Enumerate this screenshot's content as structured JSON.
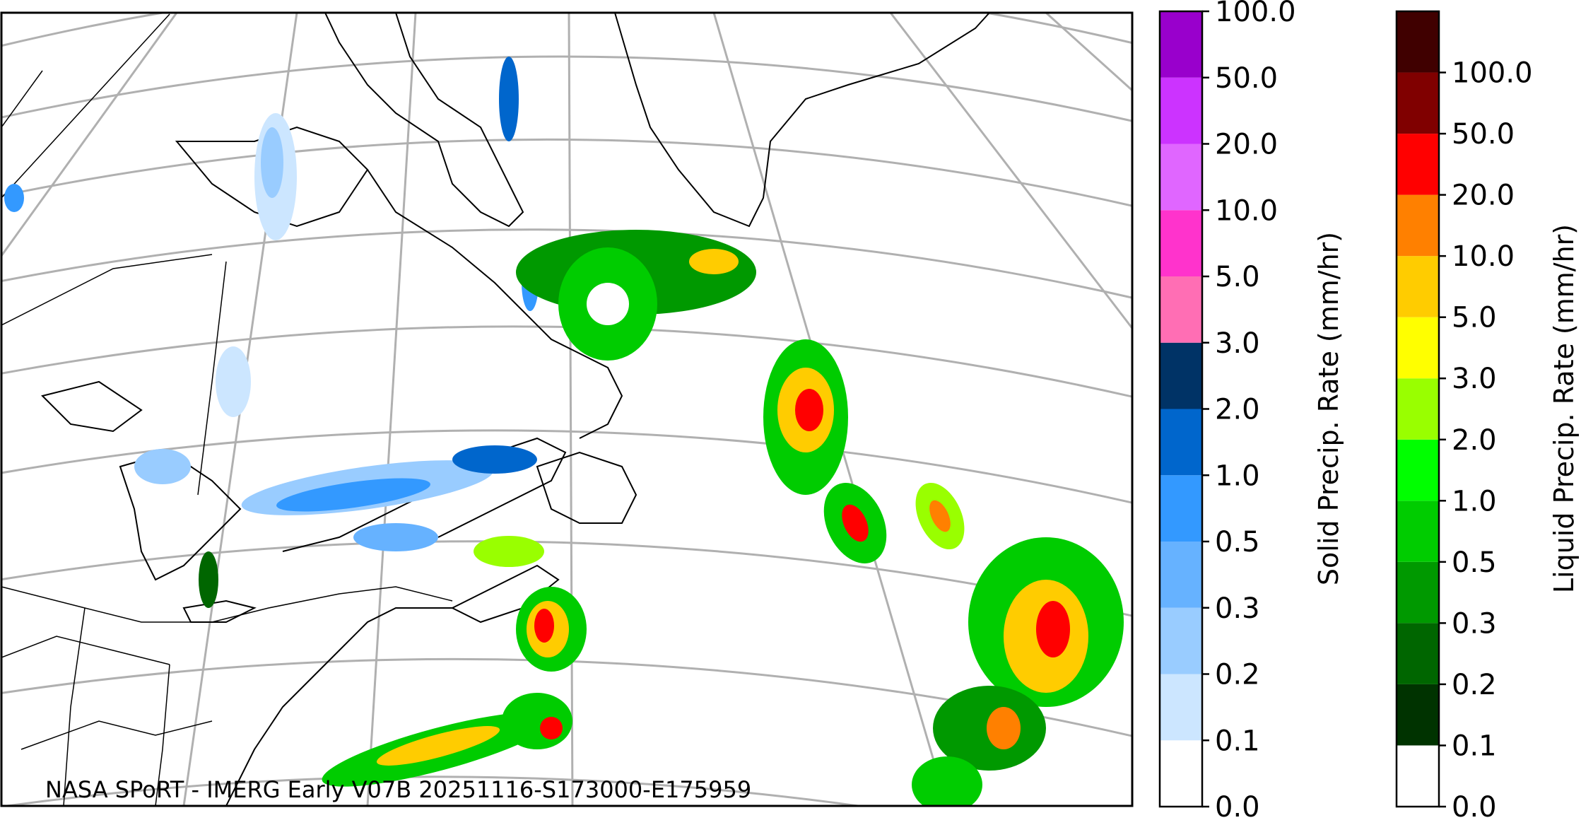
{
  "credit": "NASA SPoRT - IMERG Early V07B 20251116-S173000-E175959",
  "solid_bar": {
    "title": "Solid Precip. Rate (mm/hr)",
    "ticks": [
      "0.0",
      "0.1",
      "0.2",
      "0.3",
      "0.5",
      "1.0",
      "2.0",
      "3.0",
      "5.0",
      "10.0",
      "20.0",
      "50.0",
      "100.0"
    ],
    "colors": [
      "#ffffff",
      "#cce6ff",
      "#99ccff",
      "#66b2ff",
      "#3399ff",
      "#0066cc",
      "#003366",
      "#ff6eb4",
      "#ff33cc",
      "#e066ff",
      "#cc33ff",
      "#9900cc"
    ]
  },
  "liquid_bar": {
    "title": "Liquid Precip. Rate (mm/hr)",
    "ticks": [
      "0.0",
      "0.1",
      "0.2",
      "0.3",
      "0.5",
      "1.0",
      "2.0",
      "3.0",
      "5.0",
      "10.0",
      "20.0",
      "50.0",
      "100.0"
    ],
    "colors": [
      "#ffffff",
      "#003300",
      "#006600",
      "#009900",
      "#00cc00",
      "#00ff00",
      "#99ff00",
      "#ffff00",
      "#ffcc00",
      "#ff8000",
      "#ff0000",
      "#800000",
      "#400000"
    ]
  },
  "precip_colors": {
    "liquid_dark": "#006600",
    "liquid_mid": "#00cc00",
    "liquid_light": "#99ff00",
    "liquid_yellow": "#ffcc00",
    "liquid_orange": "#ff8000",
    "liquid_red": "#ff0000",
    "solid_light": "#99ccff",
    "solid_mid": "#3399ff",
    "solid_dark": "#0066cc",
    "grid": "#b0b0b0",
    "coast": "#000000"
  }
}
